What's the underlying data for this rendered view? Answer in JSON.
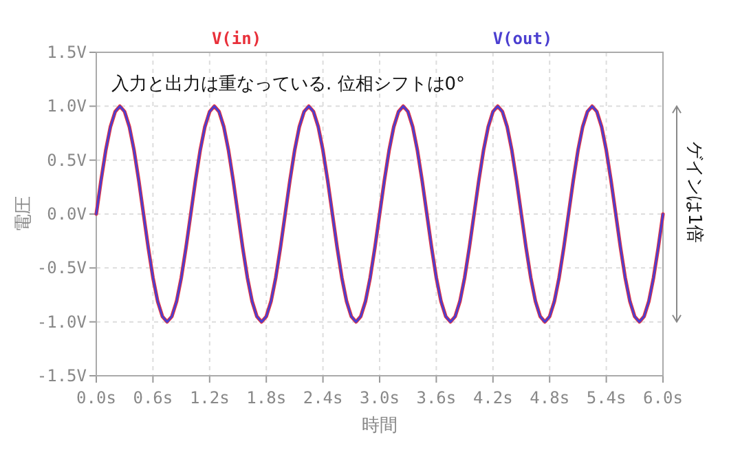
{
  "chart_data": {
    "type": "line",
    "xlabel": "時間",
    "ylabel": "電圧",
    "x": [
      0,
      0.05,
      0.1,
      0.15,
      0.2,
      0.25,
      0.3,
      0.35,
      0.4,
      0.45,
      0.5,
      0.55,
      0.6,
      0.65,
      0.7,
      0.75,
      0.8,
      0.85,
      0.9,
      0.95,
      1,
      1.05,
      1.1,
      1.15,
      1.2,
      1.25,
      1.3,
      1.35,
      1.4,
      1.45,
      1.5,
      1.55,
      1.6,
      1.65,
      1.7,
      1.75,
      1.8,
      1.85,
      1.9,
      1.95,
      2,
      2.05,
      2.1,
      2.15,
      2.2,
      2.25,
      2.3,
      2.35,
      2.4,
      2.45,
      2.5,
      2.55,
      2.6,
      2.65,
      2.7,
      2.75,
      2.8,
      2.85,
      2.9,
      2.95,
      3,
      3.05,
      3.1,
      3.15,
      3.2,
      3.25,
      3.3,
      3.35,
      3.4,
      3.45,
      3.5,
      3.55,
      3.6,
      3.65,
      3.7,
      3.75,
      3.8,
      3.85,
      3.9,
      3.95,
      4,
      4.05,
      4.1,
      4.15,
      4.2,
      4.25,
      4.3,
      4.35,
      4.4,
      4.45,
      4.5,
      4.55,
      4.6,
      4.65,
      4.7,
      4.75,
      4.8,
      4.85,
      4.9,
      4.95,
      5,
      5.05,
      5.1,
      5.15,
      5.2,
      5.25,
      5.3,
      5.35,
      5.4,
      5.45,
      5.5,
      5.55,
      5.6,
      5.65,
      5.7,
      5.75,
      5.8,
      5.85,
      5.9,
      5.95,
      6
    ],
    "series": [
      {
        "name": "V(in)",
        "color": "#e8303a",
        "values": [
          0,
          0.31,
          0.59,
          0.81,
          0.95,
          1,
          0.95,
          0.81,
          0.59,
          0.31,
          0,
          -0.31,
          -0.59,
          -0.81,
          -0.95,
          -1,
          -0.95,
          -0.81,
          -0.59,
          -0.31,
          0,
          0.31,
          0.59,
          0.81,
          0.95,
          1,
          0.95,
          0.81,
          0.59,
          0.31,
          0,
          -0.31,
          -0.59,
          -0.81,
          -0.95,
          -1,
          -0.95,
          -0.81,
          -0.59,
          -0.31,
          0,
          0.31,
          0.59,
          0.81,
          0.95,
          1,
          0.95,
          0.81,
          0.59,
          0.31,
          0,
          -0.31,
          -0.59,
          -0.81,
          -0.95,
          -1,
          -0.95,
          -0.81,
          -0.59,
          -0.31,
          0,
          0.31,
          0.59,
          0.81,
          0.95,
          1,
          0.95,
          0.81,
          0.59,
          0.31,
          0,
          -0.31,
          -0.59,
          -0.81,
          -0.95,
          -1,
          -0.95,
          -0.81,
          -0.59,
          -0.31,
          0,
          0.31,
          0.59,
          0.81,
          0.95,
          1,
          0.95,
          0.81,
          0.59,
          0.31,
          0,
          -0.31,
          -0.59,
          -0.81,
          -0.95,
          -1,
          -0.95,
          -0.81,
          -0.59,
          -0.31,
          0,
          0.31,
          0.59,
          0.81,
          0.95,
          1,
          0.95,
          0.81,
          0.59,
          0.31,
          0,
          -0.31,
          -0.59,
          -0.81,
          -0.95,
          -1,
          -0.95,
          -0.81,
          -0.59,
          -0.31,
          0
        ]
      },
      {
        "name": "V(out)",
        "color": "#4b3fd0",
        "values": [
          0,
          0.31,
          0.59,
          0.81,
          0.95,
          1,
          0.95,
          0.81,
          0.59,
          0.31,
          0,
          -0.31,
          -0.59,
          -0.81,
          -0.95,
          -1,
          -0.95,
          -0.81,
          -0.59,
          -0.31,
          0,
          0.31,
          0.59,
          0.81,
          0.95,
          1,
          0.95,
          0.81,
          0.59,
          0.31,
          0,
          -0.31,
          -0.59,
          -0.81,
          -0.95,
          -1,
          -0.95,
          -0.81,
          -0.59,
          -0.31,
          0,
          0.31,
          0.59,
          0.81,
          0.95,
          1,
          0.95,
          0.81,
          0.59,
          0.31,
          0,
          -0.31,
          -0.59,
          -0.81,
          -0.95,
          -1,
          -0.95,
          -0.81,
          -0.59,
          -0.31,
          0,
          0.31,
          0.59,
          0.81,
          0.95,
          1,
          0.95,
          0.81,
          0.59,
          0.31,
          0,
          -0.31,
          -0.59,
          -0.81,
          -0.95,
          -1,
          -0.95,
          -0.81,
          -0.59,
          -0.31,
          0,
          0.31,
          0.59,
          0.81,
          0.95,
          1,
          0.95,
          0.81,
          0.59,
          0.31,
          0,
          -0.31,
          -0.59,
          -0.81,
          -0.95,
          -1,
          -0.95,
          -0.81,
          -0.59,
          -0.31,
          0,
          0.31,
          0.59,
          0.81,
          0.95,
          1,
          0.95,
          0.81,
          0.59,
          0.31,
          0,
          -0.31,
          -0.59,
          -0.81,
          -0.95,
          -1,
          -0.95,
          -0.81,
          -0.59,
          -0.31,
          0
        ]
      }
    ],
    "xlim": [
      0,
      6
    ],
    "ylim": [
      -1.5,
      1.5
    ],
    "xticks": [
      {
        "value": 0,
        "label": "0.0s"
      },
      {
        "value": 0.6,
        "label": "0.6s"
      },
      {
        "value": 1.2,
        "label": "1.2s"
      },
      {
        "value": 1.8,
        "label": "1.8s"
      },
      {
        "value": 2.4,
        "label": "2.4s"
      },
      {
        "value": 3,
        "label": "3.0s"
      },
      {
        "value": 3.6,
        "label": "3.6s"
      },
      {
        "value": 4.2,
        "label": "4.2s"
      },
      {
        "value": 4.8,
        "label": "4.8s"
      },
      {
        "value": 5.4,
        "label": "5.4s"
      },
      {
        "value": 6,
        "label": "6.0s"
      }
    ],
    "yticks": [
      {
        "value": -1.5,
        "label": "-1.5V"
      },
      {
        "value": -1,
        "label": "-1.0V"
      },
      {
        "value": -0.5,
        "label": "-0.5V"
      },
      {
        "value": 0,
        "label": "0.0V"
      },
      {
        "value": 0.5,
        "label": "0.5V"
      },
      {
        "value": 1,
        "label": "1.0V"
      },
      {
        "value": 1.5,
        "label": "1.5V"
      }
    ],
    "annotations": [
      "入力と出力は重なっている. 位相シフトは0°",
      "ゲインは1倍"
    ],
    "grid": true,
    "legend": "top",
    "marker": "none",
    "line_style": "solid"
  }
}
